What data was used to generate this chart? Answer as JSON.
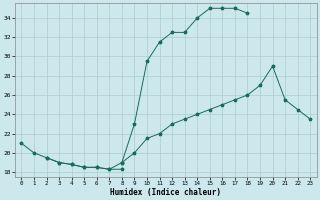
{
  "xlabel": "Humidex (Indice chaleur)",
  "bg_color": "#cce8ec",
  "grid_color": "#aacccc",
  "line_color": "#1a6b5a",
  "xlim": [
    -0.5,
    23.5
  ],
  "ylim": [
    17.5,
    35.5
  ],
  "xticks": [
    0,
    1,
    2,
    3,
    4,
    5,
    6,
    7,
    8,
    9,
    10,
    11,
    12,
    13,
    14,
    15,
    16,
    17,
    18,
    19,
    20,
    21,
    22,
    23
  ],
  "yticks": [
    18,
    20,
    22,
    24,
    26,
    28,
    30,
    32,
    34
  ],
  "line_top_x": [
    0,
    1,
    2,
    3,
    4,
    5,
    6,
    7,
    8,
    9,
    10,
    11,
    12,
    13,
    14,
    15,
    16,
    17,
    18
  ],
  "line_top_y": [
    21.0,
    20.0,
    19.5,
    19.0,
    18.8,
    18.5,
    18.5,
    18.3,
    19.0,
    23.0,
    29.5,
    31.5,
    32.5,
    32.5,
    34.0,
    35.0,
    35.0,
    35.0,
    34.5
  ],
  "line_mid_x": [
    8,
    9,
    10,
    11,
    12,
    13,
    14,
    15,
    16,
    17,
    18,
    19,
    20,
    21,
    22,
    23
  ],
  "line_mid_y": [
    19.0,
    20.0,
    21.5,
    22.0,
    23.0,
    23.5,
    24.0,
    24.5,
    25.0,
    25.5,
    26.0,
    27.0,
    29.0,
    25.5,
    24.5,
    23.5
  ],
  "line_bot_x": [
    2,
    3,
    4,
    5,
    6,
    7,
    8
  ],
  "line_bot_y": [
    19.5,
    19.0,
    18.8,
    18.5,
    18.5,
    18.3,
    18.3
  ]
}
